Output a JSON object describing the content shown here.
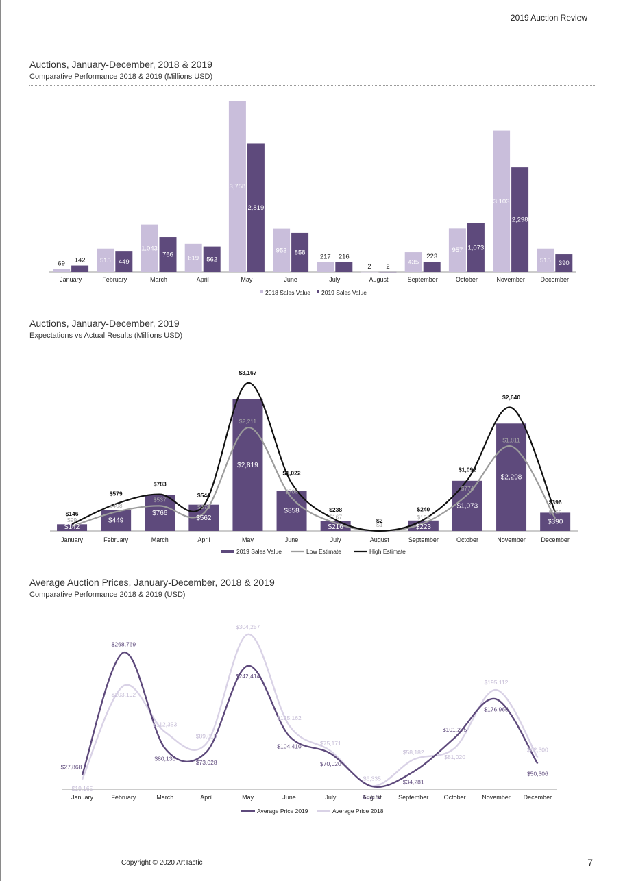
{
  "header": {
    "report_title": "2019 Auction Review"
  },
  "footer": {
    "copyright": "Copyright © 2020 ArtTactic",
    "page_number": "7"
  },
  "colors": {
    "c2018": "#c9bedb",
    "c2019": "#5e4a7c",
    "low": "#9c9c9c",
    "high": "#111111",
    "avg2019": "#5e4a7c",
    "avg2018": "#d9d2e6"
  },
  "chart_data": [
    {
      "type": "bar",
      "title": "Auctions, January-December, 2018 & 2019",
      "subtitle": "Comparative Performance 2018 & 2019 (Millions USD)",
      "categories": [
        "January",
        "February",
        "March",
        "April",
        "May",
        "June",
        "July",
        "August",
        "September",
        "October",
        "November",
        "December"
      ],
      "series": [
        {
          "name": "2018 Sales Value",
          "values": [
            69,
            515,
            1043,
            619,
            3758,
            953,
            217,
            2,
            435,
            957,
            3103,
            515
          ],
          "labels": [
            "69",
            "515",
            "1,043",
            "619",
            "3,758",
            "953",
            "217",
            "2",
            "435",
            "957",
            "3,103",
            "515"
          ]
        },
        {
          "name": "2019 Sales Value",
          "values": [
            142,
            449,
            766,
            562,
            2819,
            858,
            216,
            2,
            223,
            1073,
            2298,
            390
          ],
          "labels": [
            "142",
            "449",
            "766",
            "562",
            "2,819",
            "858",
            "216",
            "2",
            "223",
            "1,073",
            "2,298",
            "390"
          ]
        }
      ],
      "ylim": [
        0,
        3758
      ],
      "legend": "bottom-center",
      "grid": false
    },
    {
      "type": "bar",
      "title": "Auctions, January-December, 2019",
      "subtitle": "Expectations vs Actual Results (Millions USD)",
      "categories": [
        "January",
        "February",
        "March",
        "April",
        "May",
        "June",
        "July",
        "August",
        "September",
        "October",
        "November",
        "December"
      ],
      "series": [
        {
          "name": "2019 Sales Value",
          "kind": "bar",
          "values": [
            142,
            449,
            766,
            562,
            2819,
            858,
            216,
            2,
            223,
            1073,
            2298,
            390
          ],
          "labels": [
            "$142",
            "$449",
            "$766",
            "$562",
            "$2,819",
            "$858",
            "$216",
            "$2",
            "$223",
            "$1,073",
            "$2,298",
            "$390"
          ]
        },
        {
          "name": "Low Estimate",
          "kind": "line",
          "values": [
            99,
            408,
            537,
            379,
            2211,
            708,
            167,
            1,
            164,
            774,
            1811,
            266
          ],
          "labels": [
            "$99",
            "$408",
            "$537",
            "$379",
            "$2,211",
            "$708",
            "$167",
            "$1",
            "$164",
            "$774",
            "$1,811",
            "$266"
          ]
        },
        {
          "name": "High Estimate",
          "kind": "line",
          "values": [
            146,
            579,
            783,
            544,
            3167,
            1022,
            238,
            2,
            240,
            1092,
            2640,
            396
          ],
          "labels": [
            "$146",
            "$579",
            "$783",
            "$544",
            "$3,167",
            "$1,022",
            "$238",
            "$2",
            "$240",
            "$1,092",
            "$2,640",
            "$396"
          ]
        }
      ],
      "ylim": [
        0,
        3167
      ],
      "legend": "bottom-center",
      "grid": false
    },
    {
      "type": "line",
      "title": "Average Auction Prices, January-December, 2018 & 2019",
      "subtitle": "Comparative Performance 2018 & 2019 (USD)",
      "categories": [
        "January",
        "February",
        "March",
        "April",
        "May",
        "June",
        "July",
        "August",
        "September",
        "October",
        "November",
        "December"
      ],
      "series": [
        {
          "name": "Average Price 2019",
          "values": [
            27868,
            268769,
            80136,
            73028,
            242414,
            104410,
            70020,
            5372,
            34281,
            101275,
            176965,
            50306
          ],
          "labels": [
            "$27,868",
            "$268,769",
            "$80,136",
            "$73,028",
            "$242,414",
            "$104,410",
            "$70,020",
            "$5,372",
            "$34,281",
            "$101,275",
            "$176,965",
            "$50,306"
          ]
        },
        {
          "name": "Average Price 2018",
          "values": [
            19165,
            203192,
            112353,
            89818,
            304257,
            125162,
            75171,
            6335,
            58182,
            81020,
            195112,
            62300
          ],
          "labels": [
            "$19,165",
            "$203,192",
            "$112,353",
            "$89,818",
            "$304,257",
            "$125,162",
            "$75,171",
            "$6,335",
            "$58,182",
            "$81,020",
            "$195,112",
            "$62,300"
          ]
        }
      ],
      "ylim": [
        0,
        304257
      ],
      "legend": "bottom-center",
      "grid": false
    }
  ]
}
